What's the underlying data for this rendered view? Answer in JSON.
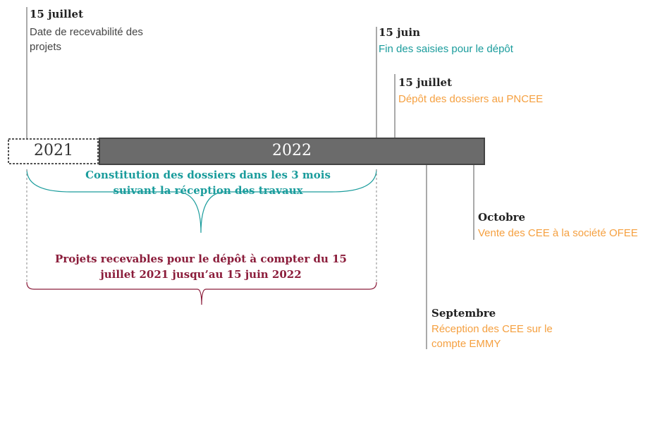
{
  "years": [
    "2021",
    "2022"
  ],
  "events": [
    {
      "date": "15 juillet",
      "label": "Date de recevabilité des projets"
    },
    {
      "date": "15 juin",
      "label": "Fin des saisies pour le dépôt"
    },
    {
      "date": "15 juillet",
      "label": "Dépôt des dossiers au PNCEE"
    },
    {
      "date": "Octobre",
      "label": "Vente des CEE à la société OFEE"
    },
    {
      "date": "Septembre",
      "label": "Réception des CEE sur le compte EMMY"
    }
  ],
  "braces": [
    {
      "label": "Constitution des dossiers dans les 3 mois suivant la réception des travaux"
    },
    {
      "label": "Projets recevables pour le dépôt à compter du 15 juillet 2021 jusqu’au 15 juin 2022"
    }
  ]
}
